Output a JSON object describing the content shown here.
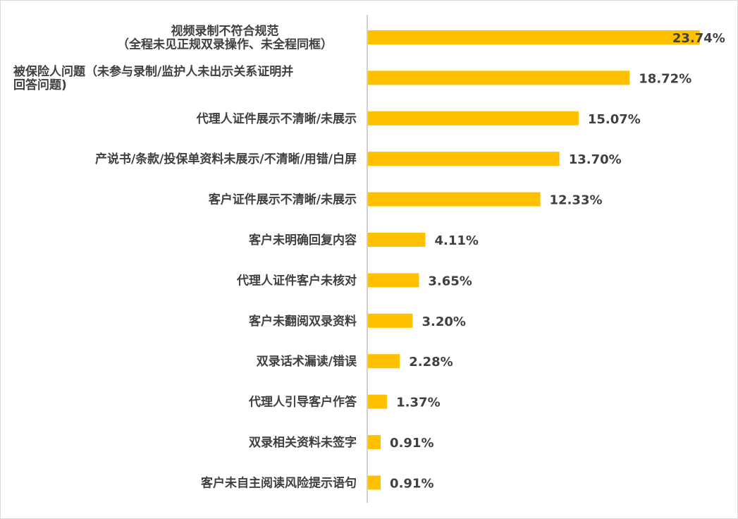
{
  "chart_data": {
    "type": "bar",
    "orientation": "horizontal",
    "categories": [
      "视频录制不符合规范\n（全程未见正规双录操作、未全程同框）",
      "被保险人问题（未参与录制/监护人未出示关系证明并\n回答问题)",
      "代理人证件展示不清晰/未展示",
      "产说书/条款/投保单资料未展示/不清晰/用错/白屏",
      "客户证件展示不清晰/未展示",
      "客户未明确回复内容",
      "代理人证件客户未核对",
      "客户未翻阅双录资料",
      "双录话术漏读/错误",
      "代理人引导客户作答",
      "双录相关资料未签字",
      "客户未自主阅读风险提示语句"
    ],
    "values": [
      23.74,
      18.72,
      15.07,
      13.7,
      12.33,
      4.11,
      3.65,
      3.2,
      2.28,
      1.37,
      0.91,
      0.91
    ],
    "value_labels": [
      "23.74%",
      "18.72%",
      "15.07%",
      "13.70%",
      "12.33%",
      "4.11%",
      "3.65%",
      "3.20%",
      "2.28%",
      "1.37%",
      "0.91%",
      "0.91%"
    ],
    "xlim": [
      0,
      24
    ],
    "bar_color": "#FFC000",
    "axis_color": "#BFBFBF",
    "text_color": "#404040",
    "grid": false,
    "legend": "none"
  }
}
